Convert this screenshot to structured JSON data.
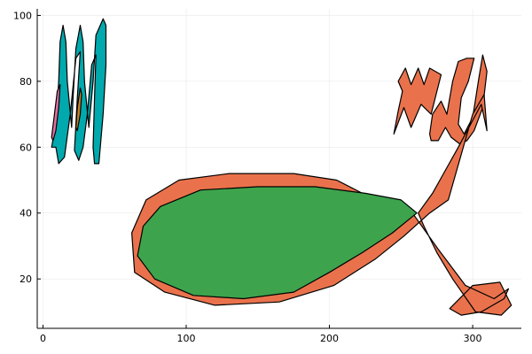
{
  "chart_data": {
    "type": "area",
    "title": "",
    "xlabel": "",
    "ylabel": "",
    "xlim": [
      -4,
      334
    ],
    "ylim": [
      5,
      102
    ],
    "grid": true,
    "legend": "none",
    "x_ticks": [
      0,
      100,
      200,
      300
    ],
    "y_ticks": [
      20,
      40,
      60,
      80,
      100
    ],
    "series": [
      {
        "id": "m-outer",
        "color": "#00a9ad",
        "points": [
          [
            6,
            60
          ],
          [
            9,
            67
          ],
          [
            11,
            80
          ],
          [
            12,
            92
          ],
          [
            14,
            97
          ],
          [
            16,
            92
          ],
          [
            17,
            80
          ],
          [
            20,
            66
          ],
          [
            21,
            75
          ],
          [
            23,
            90
          ],
          [
            26,
            97
          ],
          [
            28,
            92
          ],
          [
            29,
            80
          ],
          [
            32,
            66
          ],
          [
            35,
            80
          ],
          [
            37,
            94
          ],
          [
            42,
            99
          ],
          [
            44,
            97
          ],
          [
            44,
            85
          ],
          [
            42,
            70
          ],
          [
            40,
            60
          ],
          [
            39,
            55
          ],
          [
            36,
            55
          ],
          [
            35,
            60
          ],
          [
            36,
            75
          ],
          [
            37,
            88
          ],
          [
            34,
            85
          ],
          [
            31,
            70
          ],
          [
            28,
            60
          ],
          [
            25,
            56
          ],
          [
            22,
            59
          ],
          [
            24,
            75
          ],
          [
            26,
            89
          ],
          [
            23,
            87
          ],
          [
            19,
            70
          ],
          [
            15,
            57
          ],
          [
            11,
            55
          ],
          [
            9,
            60
          ],
          [
            6,
            60
          ]
        ]
      },
      {
        "id": "m-inner-left",
        "color": "#e26f9f",
        "points": [
          [
            6,
            63
          ],
          [
            8,
            70
          ],
          [
            10,
            77
          ],
          [
            12,
            79
          ],
          [
            11,
            72
          ],
          [
            9,
            65
          ],
          [
            7,
            62
          ],
          [
            6,
            63
          ]
        ]
      },
      {
        "id": "m-inner-right",
        "color": "#c68125",
        "points": [
          [
            23,
            66
          ],
          [
            24,
            72
          ],
          [
            26,
            78
          ],
          [
            27,
            76
          ],
          [
            26,
            70
          ],
          [
            24,
            65
          ],
          [
            23,
            66
          ]
        ]
      },
      {
        "id": "x-loop",
        "color": "#e9724c",
        "points": [
          [
            245,
            64
          ],
          [
            252,
            72
          ],
          [
            257,
            66
          ],
          [
            264,
            73
          ],
          [
            271,
            70
          ],
          [
            278,
            82
          ],
          [
            270,
            84
          ],
          [
            266,
            79
          ],
          [
            262,
            84
          ],
          [
            257,
            79
          ],
          [
            253,
            84
          ],
          [
            248,
            80
          ],
          [
            251,
            77
          ],
          [
            248,
            71
          ],
          [
            245,
            64
          ]
        ]
      },
      {
        "id": "u-part",
        "color": "#e9724c",
        "points": [
          [
            270,
            64
          ],
          [
            272,
            70
          ],
          [
            278,
            74
          ],
          [
            282,
            70
          ],
          [
            286,
            80
          ],
          [
            290,
            86
          ],
          [
            296,
            87
          ],
          [
            301,
            87
          ],
          [
            297,
            80
          ],
          [
            292,
            75
          ],
          [
            290,
            67
          ],
          [
            294,
            64
          ],
          [
            300,
            69
          ],
          [
            304,
            80
          ],
          [
            307,
            88
          ],
          [
            310,
            83
          ],
          [
            307,
            72
          ],
          [
            301,
            65
          ],
          [
            296,
            62
          ],
          [
            291,
            61
          ],
          [
            285,
            63
          ],
          [
            281,
            66
          ],
          [
            276,
            62
          ],
          [
            271,
            62
          ],
          [
            270,
            64
          ]
        ]
      },
      {
        "id": "fish-body",
        "color": "#e9724c",
        "points": [
          [
            300,
            70
          ],
          [
            283,
            44
          ],
          [
            270,
            40
          ],
          [
            252,
            33
          ],
          [
            232,
            26
          ],
          [
            203,
            18
          ],
          [
            165,
            13
          ],
          [
            120,
            12
          ],
          [
            85,
            16
          ],
          [
            64,
            22
          ],
          [
            62,
            34
          ],
          [
            72,
            44
          ],
          [
            95,
            50
          ],
          [
            130,
            52
          ],
          [
            175,
            52
          ],
          [
            205,
            50
          ],
          [
            232,
            44
          ],
          [
            258,
            40
          ],
          [
            276,
            29
          ],
          [
            295,
            18
          ],
          [
            315,
            14
          ],
          [
            325,
            17
          ],
          [
            322,
            14
          ],
          [
            306,
            10
          ],
          [
            292,
            9
          ],
          [
            284,
            11
          ],
          [
            300,
            18
          ],
          [
            319,
            19
          ],
          [
            327,
            12
          ],
          [
            320,
            9
          ],
          [
            302,
            10
          ],
          [
            286,
            20
          ],
          [
            275,
            28
          ],
          [
            266,
            36
          ],
          [
            262,
            40
          ],
          [
            272,
            46
          ],
          [
            290,
            60
          ],
          [
            306,
            73
          ],
          [
            310,
            65
          ],
          [
            308,
            76
          ],
          [
            300,
            70
          ]
        ]
      },
      {
        "id": "fish-inner",
        "color": "#3da44d",
        "points": [
          [
            261,
            40
          ],
          [
            244,
            34
          ],
          [
            223,
            28
          ],
          [
            200,
            22
          ],
          [
            175,
            16
          ],
          [
            140,
            14
          ],
          [
            105,
            15
          ],
          [
            78,
            20
          ],
          [
            66,
            27
          ],
          [
            70,
            36
          ],
          [
            82,
            42
          ],
          [
            110,
            47
          ],
          [
            150,
            48
          ],
          [
            190,
            48
          ],
          [
            225,
            46
          ],
          [
            250,
            44
          ],
          [
            261,
            40
          ]
        ]
      }
    ]
  }
}
